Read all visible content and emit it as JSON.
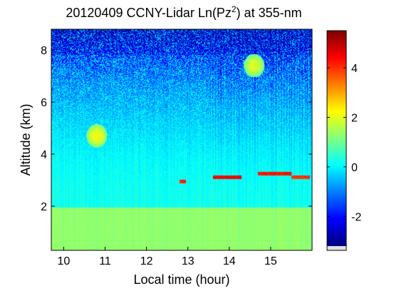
{
  "chart_data": {
    "type": "heatmap",
    "title": {
      "prefix": "20120409 CCNY-Lidar Ln(Pz",
      "superscript": "2",
      "suffix": ") at 355-nm"
    },
    "xlabel": "Local time (hour)",
    "ylabel": "Altitude (km)",
    "xlim": [
      9.7,
      16.0
    ],
    "ylim": [
      0.3,
      8.8
    ],
    "xticks": [
      10,
      11,
      12,
      13,
      14,
      15
    ],
    "xtick_labels": [
      "10",
      "11",
      "12",
      "13",
      "14",
      "15"
    ],
    "yticks": [
      2,
      4,
      6,
      8
    ],
    "ytick_labels": [
      "2",
      "4",
      "6",
      "8"
    ],
    "colorbar": {
      "range": [
        -3.2,
        5.5
      ],
      "ticks": [
        -2,
        0,
        2,
        4
      ],
      "tick_labels": [
        "-2",
        "0",
        "2",
        "4"
      ],
      "colormap": "jet"
    },
    "grid": false,
    "features": {
      "boundary_layer_top_km": 1.95,
      "boundary_layer_value": 1.3,
      "free_troposphere_value": 0.2,
      "cloud_layers": [
        {
          "t_start": 12.8,
          "t_end": 12.95,
          "alt_km": 2.95,
          "value": 4.2
        },
        {
          "t_start": 13.6,
          "t_end": 14.3,
          "alt_km": 3.1,
          "value": 4.5
        },
        {
          "t_start": 14.7,
          "t_end": 15.5,
          "alt_km": 3.25,
          "value": 4.3
        },
        {
          "t_start": 15.5,
          "t_end": 15.95,
          "alt_km": 3.1,
          "value": 4.0
        }
      ],
      "aerosol_plumes": [
        {
          "t": 10.8,
          "alt_km": 4.7,
          "value": 2.2
        },
        {
          "t": 14.6,
          "alt_km": 7.4,
          "value": 2.0
        }
      ]
    }
  }
}
